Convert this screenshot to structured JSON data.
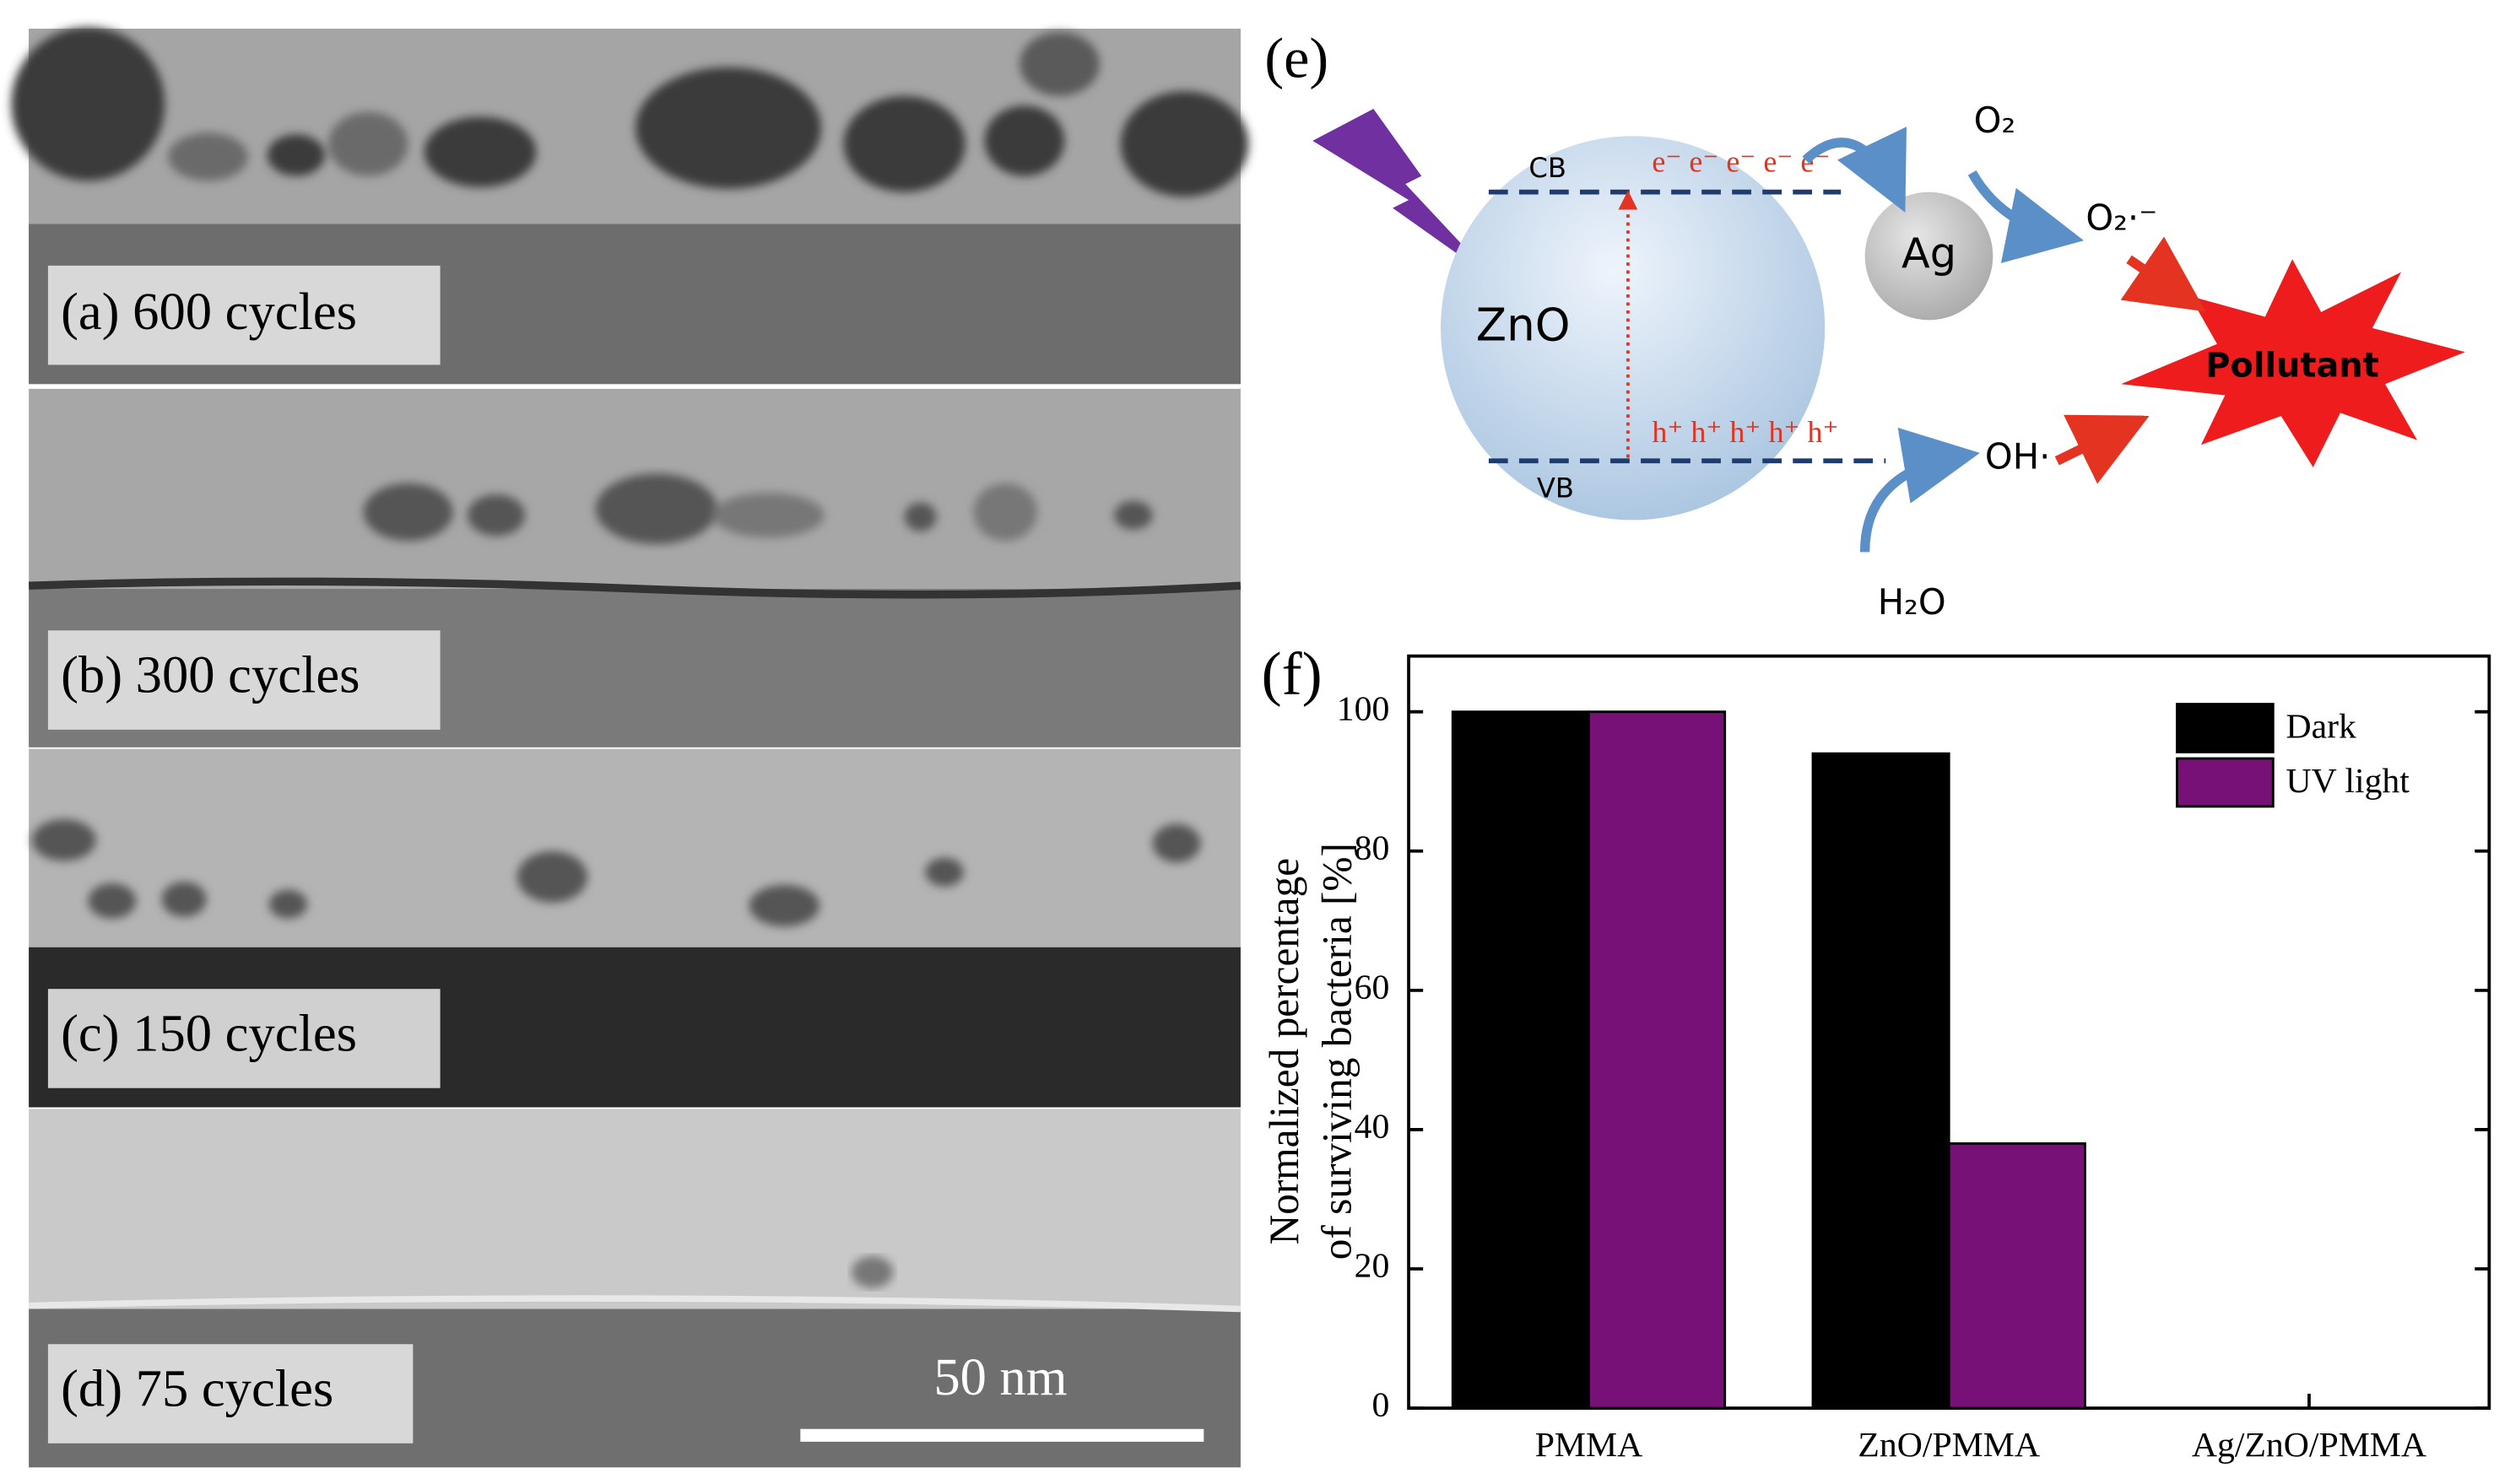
{
  "panels": [
    {
      "label": "(a) 600 cycles"
    },
    {
      "label": "(b) 300 cycles"
    },
    {
      "label": "(c) 150 cycles"
    },
    {
      "label": "(d) 75 cycles"
    }
  ],
  "scale_bar": "50 nm",
  "diagram": {
    "panel_label": "(e)",
    "cb": "CB",
    "vb": "VB",
    "semiconductor": "ZnO",
    "metal": "Ag",
    "electrons": "e⁻ e⁻ e⁻ e⁻ e⁻",
    "holes": "h⁺ h⁺ h⁺ h⁺ h⁺",
    "oxygen": "O₂",
    "superoxide": "O₂·⁻",
    "hydroxyl": "OH·",
    "water": "H₂O",
    "pollutant": "Pollutant"
  },
  "chart_data": {
    "type": "bar",
    "panel_label": "(f)",
    "y_label": [
      "Normalized percentage",
      "of surviving bacteria [%]"
    ],
    "categories": [
      "PMMA",
      "ZnO/PMMA",
      "Ag/ZnO/PMMA"
    ],
    "series": [
      {
        "name": "Dark",
        "color": "#000000",
        "values": [
          100,
          94,
          0
        ]
      },
      {
        "name": "UV light",
        "color": "#771177",
        "values": [
          100,
          38,
          0
        ]
      }
    ],
    "ylim": [
      0,
      108
    ],
    "yticks": [
      0,
      20,
      40,
      60,
      80,
      100
    ],
    "legend": "upper right"
  }
}
